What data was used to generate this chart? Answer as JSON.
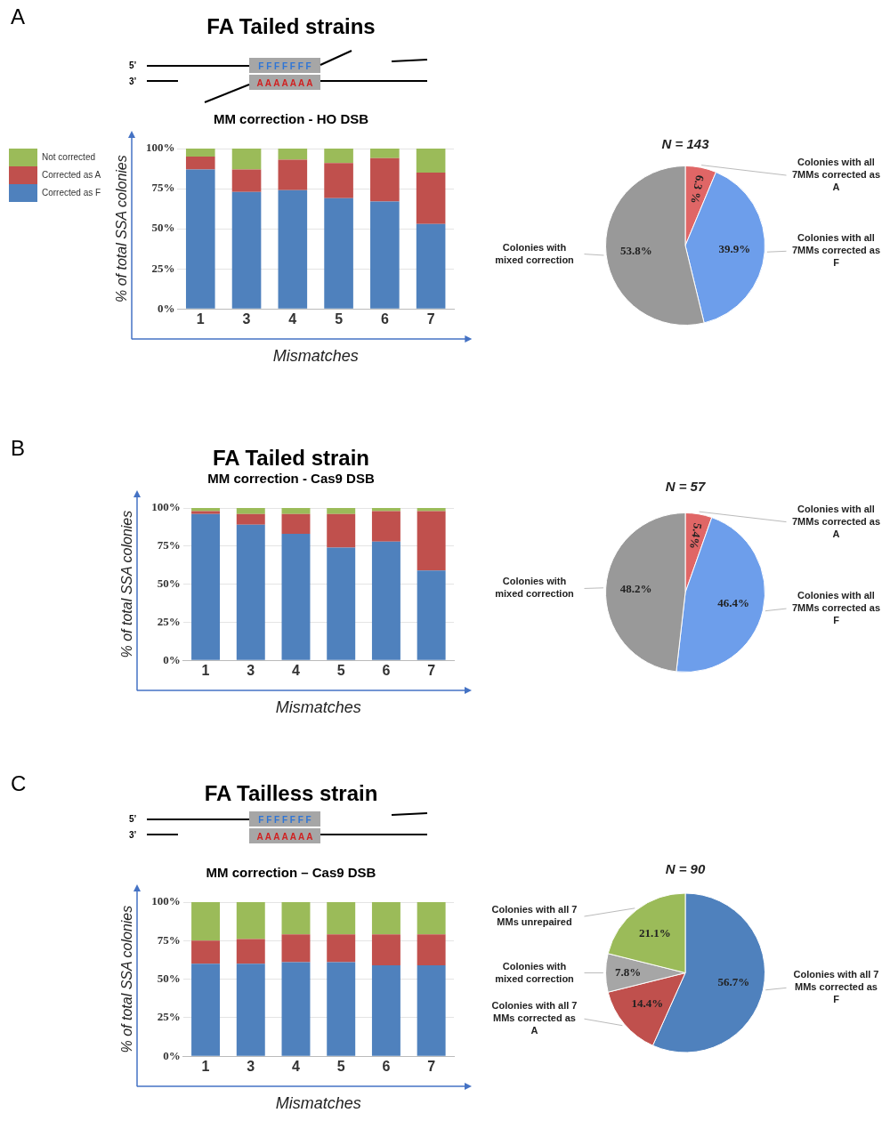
{
  "chart_data": [
    {
      "type": "bar",
      "title": "FA Tailed strains",
      "subtitle": "MM correction -  HO DSB",
      "annotations": [
        "A",
        "5’",
        "3’",
        "F F F F F F F",
        "A A A A A A A"
      ],
      "categories": [
        "1",
        "3",
        "4",
        "5",
        "6",
        "7"
      ],
      "series": [
        {
          "name": "Corrected as F",
          "color": "#4f81bd",
          "values": [
            87,
            73,
            74,
            69,
            67,
            53
          ]
        },
        {
          "name": "Corrected as A",
          "color": "#c0504d",
          "values": [
            8,
            14,
            19,
            22,
            27,
            32
          ]
        },
        {
          "name": "Not corrected",
          "color": "#9bbb59",
          "values": [
            5,
            13,
            7,
            9,
            6,
            15
          ]
        }
      ],
      "stacked": true,
      "ylim": [
        0,
        100
      ],
      "yticks": [
        {
          "value": 0,
          "label": "0%"
        },
        {
          "value": 25,
          "label": "25%"
        },
        {
          "value": 50,
          "label": "50%"
        },
        {
          "value": 75,
          "label": "75%"
        },
        {
          "value": 100,
          "label": "100%"
        }
      ],
      "ylabel": "% of total SSA colonies",
      "xlabel": "Mismatches",
      "legend": "left",
      "grid": "y"
    },
    {
      "type": "pie",
      "title": "N = 143",
      "categories": [
        "Colonies with all 7MMs corrected as A",
        "Colonies with all 7MMs corrected as F",
        "Colonies with mixed correction"
      ],
      "values": [
        6.3,
        39.9,
        53.8
      ],
      "colors": [
        "#e06666",
        "#6d9eeb",
        "#999999"
      ],
      "value_labels": [
        "6.3 %",
        "39.9%",
        "53.8%"
      ]
    },
    {
      "type": "bar",
      "title": "FA Tailed strain",
      "subtitle": "MM correction - Cas9 DSB",
      "annotations": [
        "B"
      ],
      "categories": [
        "1",
        "3",
        "4",
        "5",
        "6",
        "7"
      ],
      "series": [
        {
          "color": "#4f81bd",
          "values": [
            96,
            89,
            83,
            74,
            78,
            59
          ]
        },
        {
          "color": "#c0504d",
          "values": [
            2,
            7,
            13,
            22,
            20,
            39
          ]
        },
        {
          "color": "#9bbb59",
          "values": [
            2,
            4,
            4,
            4,
            2,
            2
          ]
        }
      ],
      "stacked": true,
      "ylim": [
        0,
        100
      ],
      "yticks": [
        {
          "value": 0,
          "label": "0%"
        },
        {
          "value": 25,
          "label": "25%"
        },
        {
          "value": 50,
          "label": "50%"
        },
        {
          "value": 75,
          "label": "75%"
        },
        {
          "value": 100,
          "label": "100%"
        }
      ],
      "ylabel": "% of total SSA colonies",
      "xlabel": "Mismatches",
      "grid": "y"
    },
    {
      "type": "pie",
      "title": "N = 57",
      "categories": [
        "Colonies with all 7MMs corrected as A",
        "Colonies with all 7MMs corrected as F",
        "Colonies with mixed correction"
      ],
      "values": [
        5.4,
        46.4,
        48.2
      ],
      "colors": [
        "#e06666",
        "#6d9eeb",
        "#999999"
      ],
      "value_labels": [
        "5.4%",
        "46.4%",
        "48.2%"
      ]
    },
    {
      "type": "bar",
      "title": "FA Tailless strain",
      "subtitle": "MM correction – Cas9 DSB",
      "annotations": [
        "C",
        "5’",
        "3’",
        "F F F F F F F",
        "A A A A A A A"
      ],
      "categories": [
        "1",
        "3",
        "4",
        "5",
        "6",
        "7"
      ],
      "series": [
        {
          "color": "#4f81bd",
          "values": [
            60,
            60,
            61,
            61,
            59,
            59
          ]
        },
        {
          "color": "#c0504d",
          "values": [
            15,
            16,
            18,
            18,
            20,
            20
          ]
        },
        {
          "color": "#9bbb59",
          "values": [
            25,
            24,
            21,
            21,
            21,
            21
          ]
        }
      ],
      "stacked": true,
      "ylim": [
        0,
        100
      ],
      "yticks": [
        {
          "value": 0,
          "label": "0%"
        },
        {
          "value": 25,
          "label": "25%"
        },
        {
          "value": 50,
          "label": "50%"
        },
        {
          "value": 75,
          "label": "75%"
        },
        {
          "value": 100,
          "label": "100%"
        }
      ],
      "ylabel": "% of total SSA colonies",
      "xlabel": "Mismatches",
      "grid": "y"
    },
    {
      "type": "pie",
      "title": "N = 90",
      "categories": [
        "Colonies with all 7 MMs corrected as F",
        "Colonies with all 7 MMs corrected as A",
        "Colonies with mixed correction",
        "Colonies with all 7 MMs unrepaired"
      ],
      "values": [
        56.7,
        14.4,
        7.8,
        21.1
      ],
      "colors": [
        "#4f81bd",
        "#c0504d",
        "#a6a6a6",
        "#9bbb59"
      ],
      "value_labels": [
        "56.7%",
        "14.4%",
        "7.8%",
        "21.1%"
      ]
    }
  ]
}
